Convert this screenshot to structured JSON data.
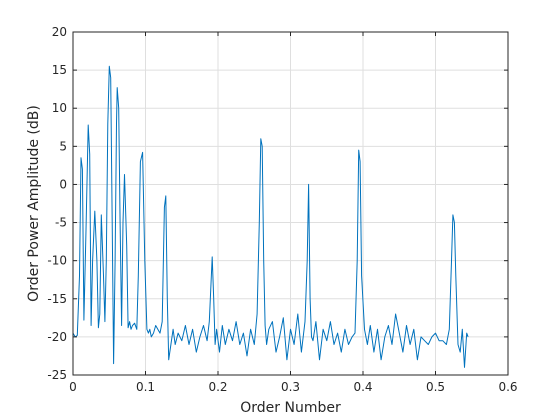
{
  "chart_data": {
    "type": "line",
    "title": "",
    "xlabel": "Order Number",
    "ylabel": "Order Power Amplitude (dB)",
    "xlim": [
      0,
      0.6
    ],
    "ylim": [
      -25,
      20
    ],
    "xticks": [
      0,
      0.1,
      0.2,
      0.3,
      0.4,
      0.5,
      0.6
    ],
    "xtick_labels": [
      "0",
      "0.1",
      "0.2",
      "0.3",
      "0.4",
      "0.5",
      "0.6"
    ],
    "yticks": [
      -25,
      -20,
      -15,
      -10,
      -5,
      0,
      5,
      10,
      15,
      20
    ],
    "ytick_labels": [
      "-25",
      "-20",
      "-15",
      "-10",
      "-5",
      "0",
      "5",
      "10",
      "15",
      "20"
    ],
    "grid": true,
    "line_color": "#0072bd",
    "series": [
      {
        "x": [
          0.0,
          0.003,
          0.006,
          0.009,
          0.011,
          0.013,
          0.015,
          0.018,
          0.021,
          0.023,
          0.025,
          0.027,
          0.03,
          0.033,
          0.035,
          0.037,
          0.039,
          0.042,
          0.044,
          0.046,
          0.048,
          0.05,
          0.052,
          0.054,
          0.056,
          0.058,
          0.06,
          0.061,
          0.063,
          0.065,
          0.067,
          0.069,
          0.071,
          0.074,
          0.076,
          0.078,
          0.08,
          0.082,
          0.085,
          0.088,
          0.09,
          0.093,
          0.096,
          0.099,
          0.102,
          0.104,
          0.106,
          0.108,
          0.111,
          0.114,
          0.117,
          0.12,
          0.123,
          0.126,
          0.128,
          0.13,
          0.132,
          0.135,
          0.138,
          0.141,
          0.145,
          0.15,
          0.155,
          0.16,
          0.165,
          0.17,
          0.175,
          0.18,
          0.185,
          0.188,
          0.192,
          0.194,
          0.196,
          0.198,
          0.202,
          0.206,
          0.21,
          0.215,
          0.22,
          0.225,
          0.23,
          0.235,
          0.24,
          0.245,
          0.25,
          0.254,
          0.257,
          0.259,
          0.261,
          0.263,
          0.265,
          0.267,
          0.27,
          0.275,
          0.28,
          0.285,
          0.29,
          0.295,
          0.3,
          0.305,
          0.31,
          0.315,
          0.32,
          0.323,
          0.325,
          0.327,
          0.329,
          0.331,
          0.335,
          0.34,
          0.345,
          0.35,
          0.355,
          0.36,
          0.365,
          0.37,
          0.375,
          0.38,
          0.385,
          0.389,
          0.392,
          0.394,
          0.396,
          0.398,
          0.402,
          0.406,
          0.41,
          0.415,
          0.42,
          0.425,
          0.43,
          0.435,
          0.44,
          0.445,
          0.45,
          0.455,
          0.46,
          0.465,
          0.47,
          0.475,
          0.48,
          0.485,
          0.49,
          0.495,
          0.5,
          0.505,
          0.51,
          0.515,
          0.519,
          0.522,
          0.524,
          0.526,
          0.528,
          0.531,
          0.534,
          0.537,
          0.54,
          0.543,
          0.545
        ],
        "y": [
          -19.5,
          -20,
          -19.8,
          -12,
          3.5,
          2,
          -17.8,
          -6,
          7.8,
          4,
          -18.5,
          -10,
          -3.5,
          -10,
          -18.8,
          -17,
          -4,
          -12,
          -18,
          -10,
          8,
          15.5,
          14,
          -5,
          -23.5,
          -10,
          8,
          12.7,
          10,
          -5,
          -18.5,
          -5,
          1.3,
          -8,
          -18.8,
          -18,
          -19,
          -18.5,
          -18.2,
          -19,
          -12,
          3,
          4.2,
          -10,
          -19,
          -19.5,
          -19,
          -20,
          -19.5,
          -18.5,
          -19,
          -19.5,
          -18,
          -3,
          -1.5,
          -15,
          -23,
          -21,
          -19,
          -21,
          -19.5,
          -20.5,
          -18.5,
          -21,
          -19,
          -22,
          -20,
          -18.5,
          -20.5,
          -18,
          -9.5,
          -15,
          -21,
          -19,
          -22,
          -18.5,
          -21,
          -19,
          -20.5,
          -18,
          -21,
          -19.5,
          -22.5,
          -19,
          -21,
          -17,
          -5,
          6,
          5,
          -10,
          -18.5,
          -21,
          -19,
          -18,
          -22,
          -20,
          -17.5,
          -23,
          -19,
          -21,
          -17,
          -22,
          -18,
          -10,
          0,
          -15,
          -20,
          -20.5,
          -18,
          -23,
          -19,
          -20.5,
          -18,
          -21,
          -19.5,
          -22,
          -19,
          -21,
          -20,
          -19.5,
          -10,
          4.5,
          3,
          -12,
          -19,
          -21,
          -18.5,
          -22,
          -19,
          -23,
          -20,
          -18.5,
          -21,
          -17,
          -19.5,
          -22,
          -18.5,
          -21,
          -19,
          -23,
          -20,
          -20.5,
          -21,
          -20,
          -19.5,
          -20.5,
          -20.5,
          -21,
          -19,
          -10,
          -4,
          -5,
          -12,
          -21,
          -22,
          -19,
          -24,
          -19.5,
          -20
        ]
      }
    ]
  }
}
